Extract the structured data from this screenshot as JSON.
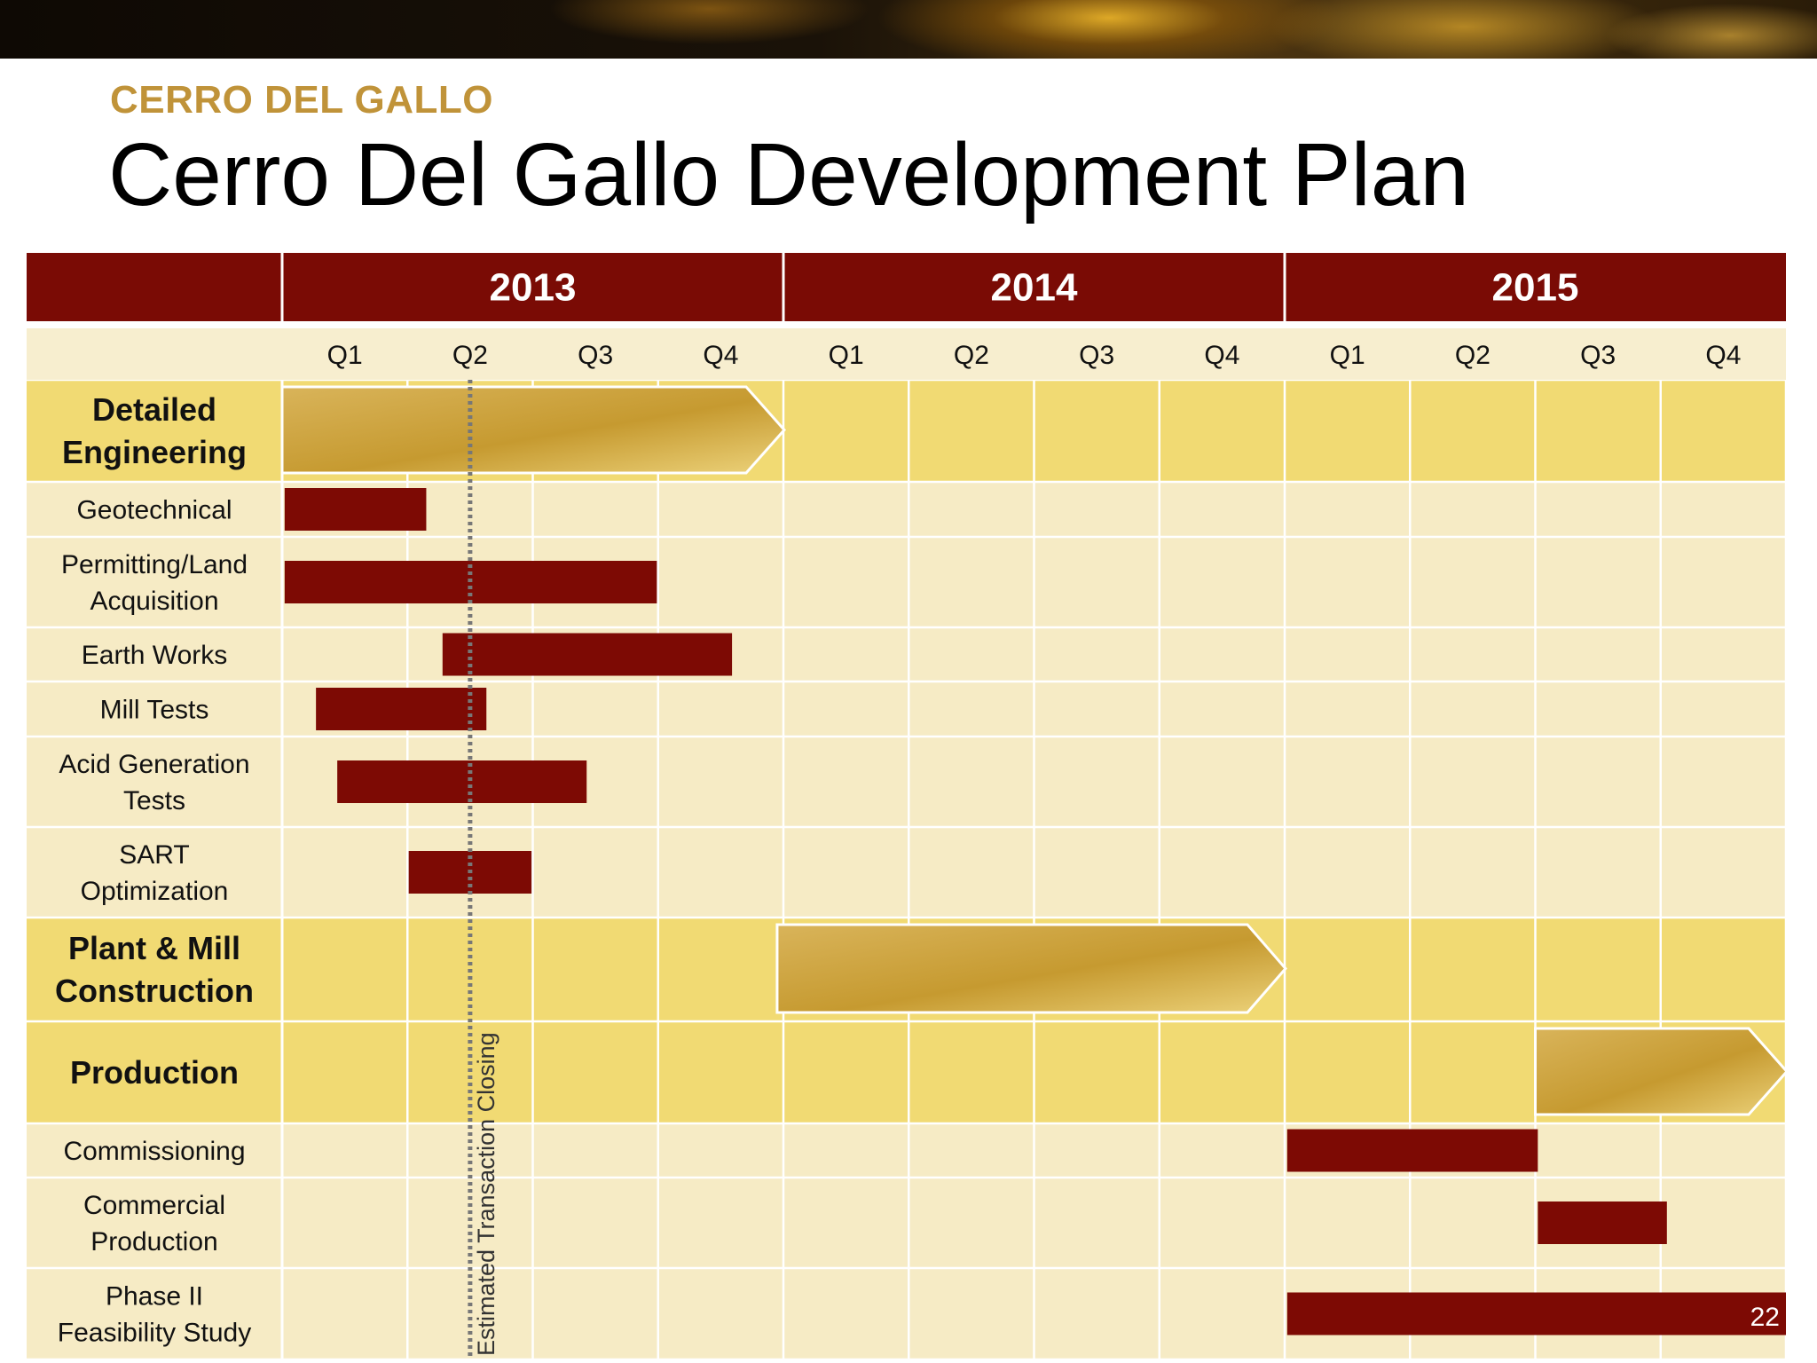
{
  "header": {
    "subtitle": "CERRO DEL GALLO",
    "title": "Cerro Del Gallo Development Plan"
  },
  "page_number": "22",
  "colors": {
    "header_red": "#7a0b05",
    "bar_red": "#7d0a04",
    "gold_arrow": "#c9a03a",
    "section_row": "#f1da73",
    "task_row": "#f6ebc5",
    "quarter_row": "#f7eecf"
  },
  "chart_data": {
    "type": "gantt",
    "years": [
      "2013",
      "2014",
      "2015"
    ],
    "quarters": [
      "Q1",
      "Q2",
      "Q3",
      "Q4"
    ],
    "x_unit": "quarter index from start of 2013 (0 = start of Q1 2013)",
    "xlim": [
      0,
      12
    ],
    "rows": [
      {
        "label": "Detailed Engineering",
        "kind": "section",
        "bar": "arrow",
        "start": 0,
        "end": 4.0
      },
      {
        "label": "Geotechnical",
        "kind": "task",
        "bar": "rect",
        "start": 0.02,
        "end": 1.15
      },
      {
        "label": "Permitting/Land Acquisition",
        "kind": "task",
        "bar": "rect",
        "start": 0.02,
        "end": 2.99
      },
      {
        "label": "Earth Works",
        "kind": "task",
        "bar": "rect",
        "start": 1.28,
        "end": 3.59
      },
      {
        "label": "Mill Tests",
        "kind": "task",
        "bar": "rect",
        "start": 0.27,
        "end": 1.63
      },
      {
        "label": "Acid Generation Tests",
        "kind": "task",
        "bar": "rect",
        "start": 0.44,
        "end": 2.43
      },
      {
        "label": "SART Optimization",
        "kind": "task",
        "bar": "rect",
        "start": 1.01,
        "end": 1.99
      },
      {
        "label": "Plant & Mill Construction",
        "kind": "section",
        "bar": "arrow",
        "start": 3.95,
        "end": 8.0
      },
      {
        "label": "Production",
        "kind": "section",
        "bar": "arrow",
        "start": 10.0,
        "end": 12.0
      },
      {
        "label": "Commissioning",
        "kind": "task",
        "bar": "rect",
        "start": 8.02,
        "end": 10.02
      },
      {
        "label": "Commercial Production",
        "kind": "task",
        "bar": "rect",
        "start": 10.02,
        "end": 11.05
      },
      {
        "label": "Phase II Feasibility Study",
        "kind": "task",
        "bar": "rect",
        "start": 8.02,
        "end": 12.0
      }
    ],
    "annotations": [
      {
        "text": "Estimated Transaction Closing",
        "type": "vertical-dashed-line",
        "x": 1.5
      }
    ]
  }
}
